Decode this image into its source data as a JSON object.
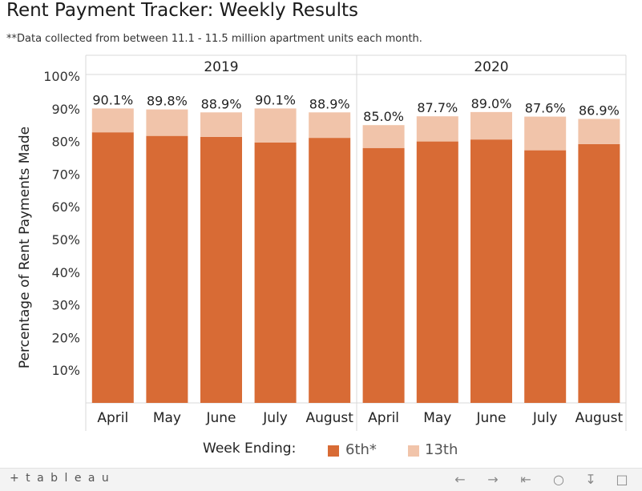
{
  "title": "Rent Payment Tracker: Weekly Results",
  "subtitle": "**Data collected from between 11.1 - 11.5 million apartment units each month.",
  "chart_data": {
    "type": "bar",
    "stacked": true,
    "ylabel": "Percentage of Rent Payments Made",
    "xlabel": "",
    "ylim": [
      0,
      100
    ],
    "yticks": [
      "10%",
      "20%",
      "30%",
      "40%",
      "50%",
      "60%",
      "70%",
      "80%",
      "90%",
      "100%"
    ],
    "panels": [
      {
        "label": "2019",
        "categories": [
          "April",
          "May",
          "June",
          "July",
          "August"
        ],
        "series": [
          {
            "name": "6th*",
            "values": [
              82.8,
              81.7,
              81.4,
              79.7,
              81.1
            ]
          },
          {
            "name": "13th",
            "values": [
              7.3,
              8.1,
              7.5,
              10.4,
              7.8
            ]
          }
        ],
        "totals": [
          "90.1%",
          "89.8%",
          "88.9%",
          "90.1%",
          "88.9%"
        ]
      },
      {
        "label": "2020",
        "categories": [
          "April",
          "May",
          "June",
          "July",
          "August"
        ],
        "series": [
          {
            "name": "6th*",
            "values": [
              78.0,
              80.0,
              80.6,
              77.3,
              79.2
            ]
          },
          {
            "name": "13th",
            "values": [
              7.0,
              7.7,
              8.4,
              10.3,
              7.7
            ]
          }
        ],
        "totals": [
          "85.0%",
          "87.7%",
          "89.0%",
          "87.6%",
          "86.9%"
        ]
      }
    ],
    "colors": {
      "6th*": "#d86b35",
      "13th": "#f1c4aa"
    },
    "grid": false,
    "legend": {
      "title": "Week Ending:",
      "position": "bottom",
      "entries": [
        "6th*",
        "13th"
      ]
    }
  },
  "toolbar": {
    "brand": "+ t a b l e a u",
    "icons": [
      "undo-icon",
      "redo-icon",
      "revert-icon",
      "share-icon",
      "download-icon",
      "fullscreen-icon"
    ]
  }
}
